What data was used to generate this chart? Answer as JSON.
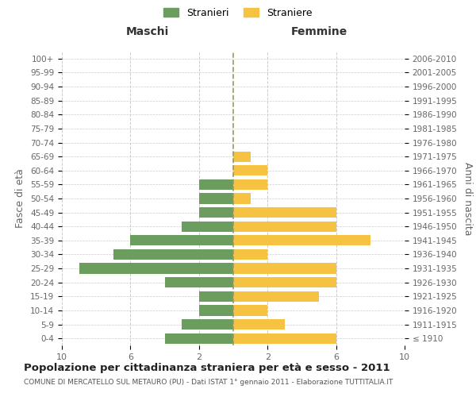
{
  "age_groups": [
    "100+",
    "95-99",
    "90-94",
    "85-89",
    "80-84",
    "75-79",
    "70-74",
    "65-69",
    "60-64",
    "55-59",
    "50-54",
    "45-49",
    "40-44",
    "35-39",
    "30-34",
    "25-29",
    "20-24",
    "15-19",
    "10-14",
    "5-9",
    "0-4"
  ],
  "birth_years": [
    "≤ 1910",
    "1911-1915",
    "1916-1920",
    "1921-1925",
    "1926-1930",
    "1931-1935",
    "1936-1940",
    "1941-1945",
    "1946-1950",
    "1951-1955",
    "1956-1960",
    "1961-1965",
    "1966-1970",
    "1971-1975",
    "1976-1980",
    "1981-1985",
    "1986-1990",
    "1991-1995",
    "1996-2000",
    "2001-2005",
    "2006-2010"
  ],
  "males": [
    0,
    0,
    0,
    0,
    0,
    0,
    0,
    0,
    0,
    2,
    2,
    2,
    3,
    6,
    7,
    9,
    4,
    2,
    2,
    3,
    4
  ],
  "females": [
    0,
    0,
    0,
    0,
    0,
    0,
    0,
    1,
    2,
    2,
    1,
    6,
    6,
    8,
    2,
    6,
    6,
    5,
    2,
    3,
    6
  ],
  "male_color": "#6b9e5e",
  "female_color": "#f5c242",
  "background_color": "#ffffff",
  "grid_color": "#cccccc",
  "title": "Popolazione per cittadinanza straniera per età e sesso - 2011",
  "subtitle": "COMUNE DI MERCATELLO SUL METAURO (PU) - Dati ISTAT 1° gennaio 2011 - Elaborazione TUTTITALIA.IT",
  "xlabel_left": "Maschi",
  "xlabel_right": "Femmine",
  "ylabel_left": "Fasce di età",
  "ylabel_right": "Anni di nascita",
  "legend_male": "Stranieri",
  "legend_female": "Straniere",
  "xlim": 10,
  "bar_height": 0.75
}
